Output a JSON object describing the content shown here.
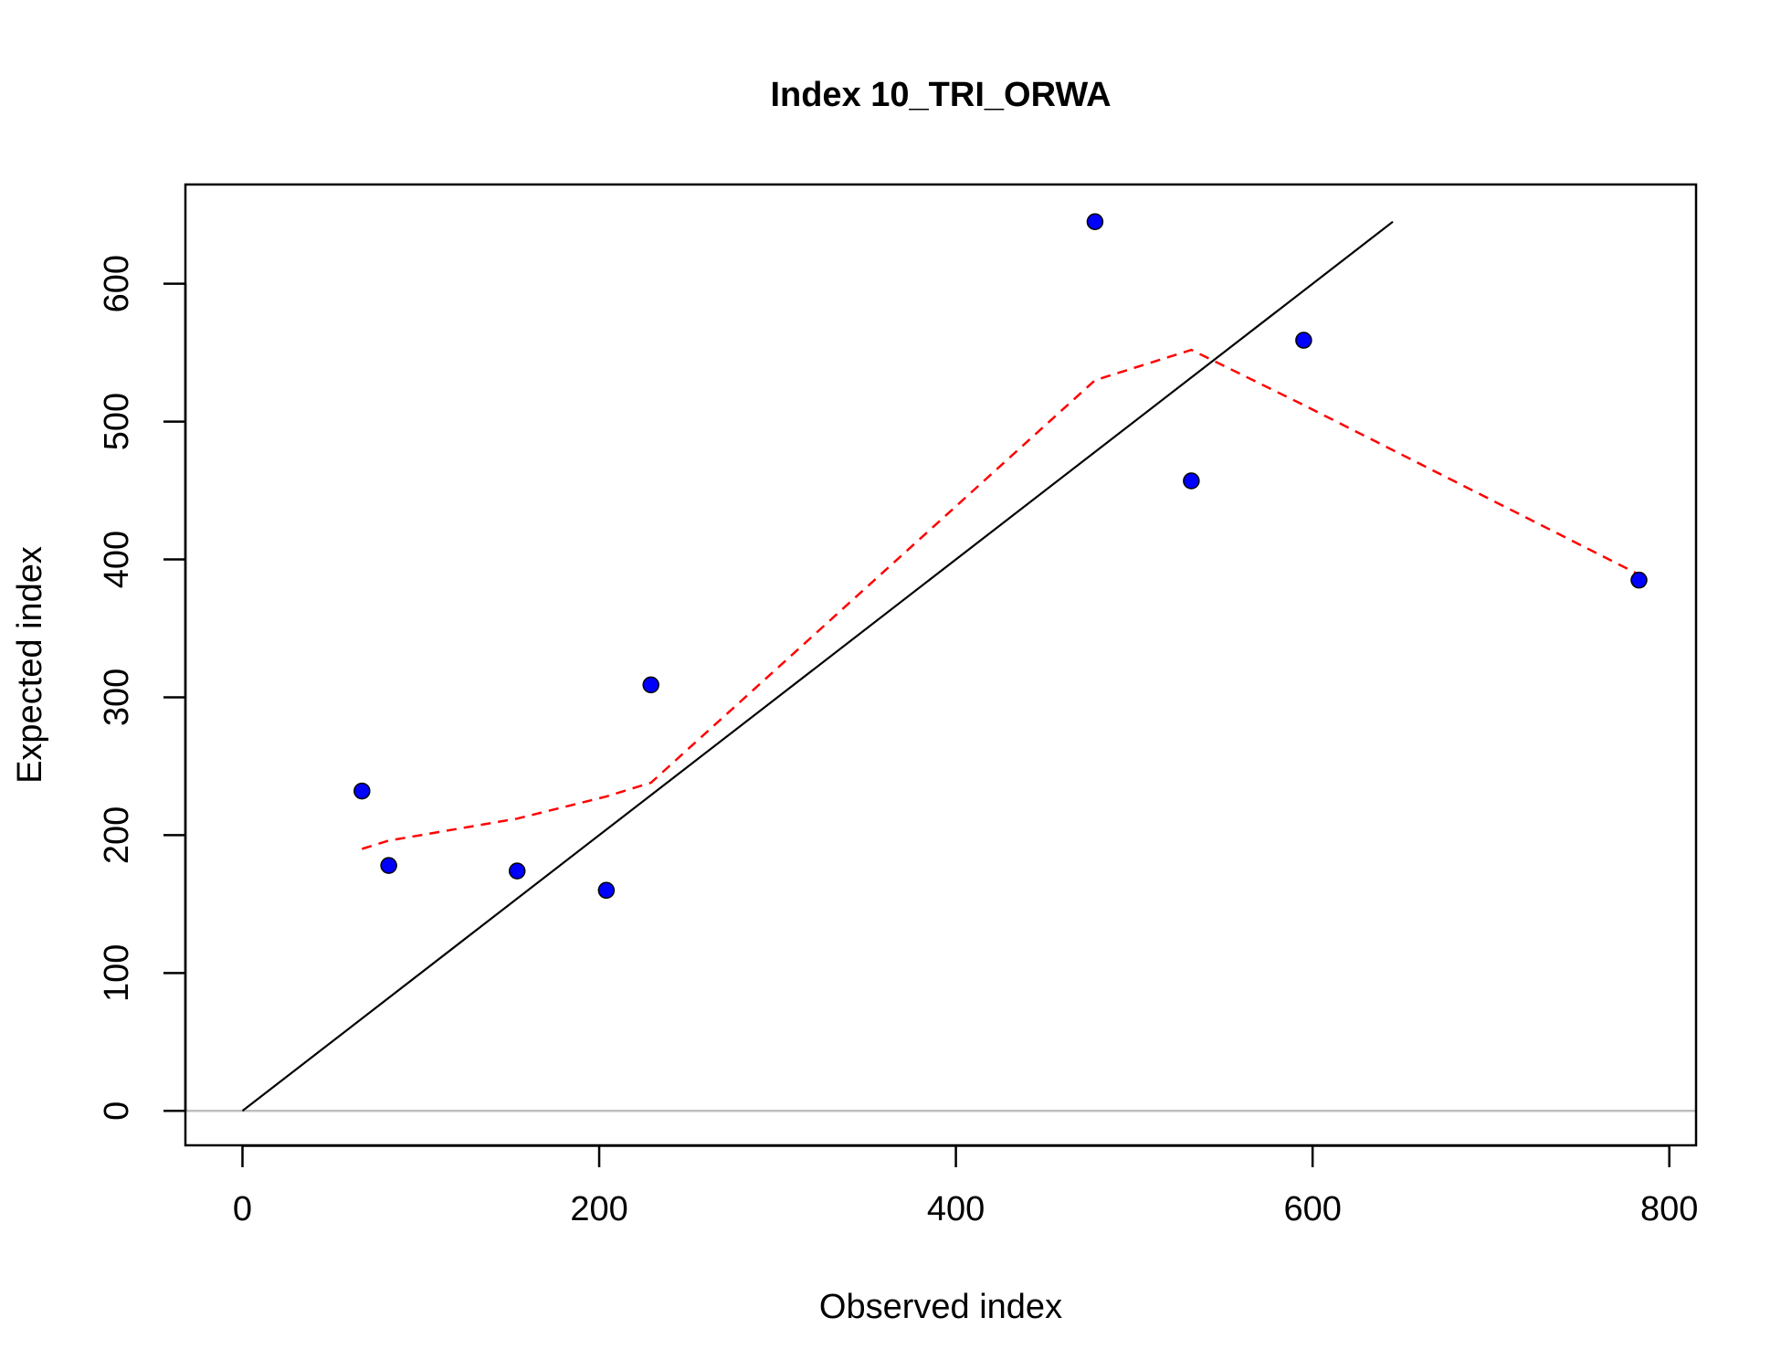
{
  "chart_data": {
    "type": "scatter",
    "title": "Index 10_TRI_ORWA",
    "xlabel": "Observed index",
    "ylabel": "Expected index",
    "xlim": [
      -32,
      815
    ],
    "ylim": [
      -25,
      672
    ],
    "xticks": [
      0,
      200,
      400,
      600,
      800
    ],
    "yticks": [
      0,
      100,
      200,
      300,
      400,
      500,
      600
    ],
    "points": {
      "x": [
        67,
        82,
        154,
        204,
        229,
        478,
        532,
        595,
        783
      ],
      "y": [
        232,
        178,
        174,
        160,
        309,
        645,
        457,
        559,
        385
      ]
    },
    "reference_line": {
      "x": [
        0,
        645
      ],
      "y": [
        0,
        645
      ]
    },
    "smooth_line": {
      "x": [
        67,
        82,
        154,
        204,
        229,
        478,
        532,
        595,
        783
      ],
      "y": [
        190,
        196,
        212,
        228,
        238,
        530,
        552,
        512,
        389
      ]
    },
    "zero_line_y": 0,
    "grid": false,
    "legend": "none",
    "colors": {
      "points": "#0000ff",
      "reference_line": "#000000",
      "smooth_line": "#ff0000",
      "zero_line": "#bebebe"
    }
  }
}
